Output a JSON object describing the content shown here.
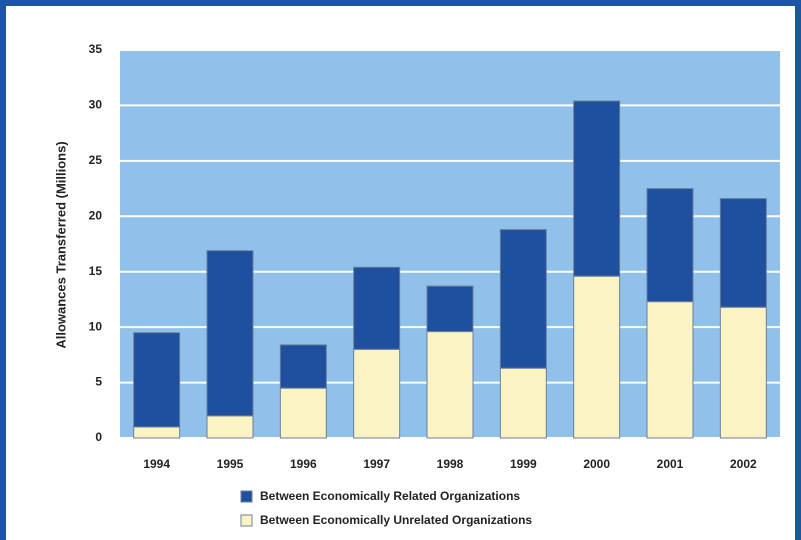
{
  "chart_data": {
    "type": "stacked_bar",
    "y_label": "Allowances Transferred (Millions)",
    "categories": [
      "1994",
      "1995",
      "1996",
      "1997",
      "1998",
      "1999",
      "2000",
      "2001",
      "2002"
    ],
    "series": [
      {
        "name": "Between Economically Related Organizations",
        "color": "#1f4f9f",
        "values": [
          8.5,
          14.9,
          3.9,
          7.4,
          4.1,
          12.5,
          15.8,
          10.2,
          9.8
        ]
      },
      {
        "name": "Between Economically Unrelated Organizations",
        "color": "#fbf3c4",
        "values": [
          1.0,
          2.0,
          4.5,
          8.0,
          9.6,
          6.3,
          14.6,
          12.3,
          11.8
        ]
      }
    ],
    "ylim": [
      0,
      35
    ],
    "yticks": [
      0,
      5,
      10,
      15,
      20,
      25,
      30,
      35
    ],
    "grid": true,
    "plot_background": "#8fc1ea"
  }
}
